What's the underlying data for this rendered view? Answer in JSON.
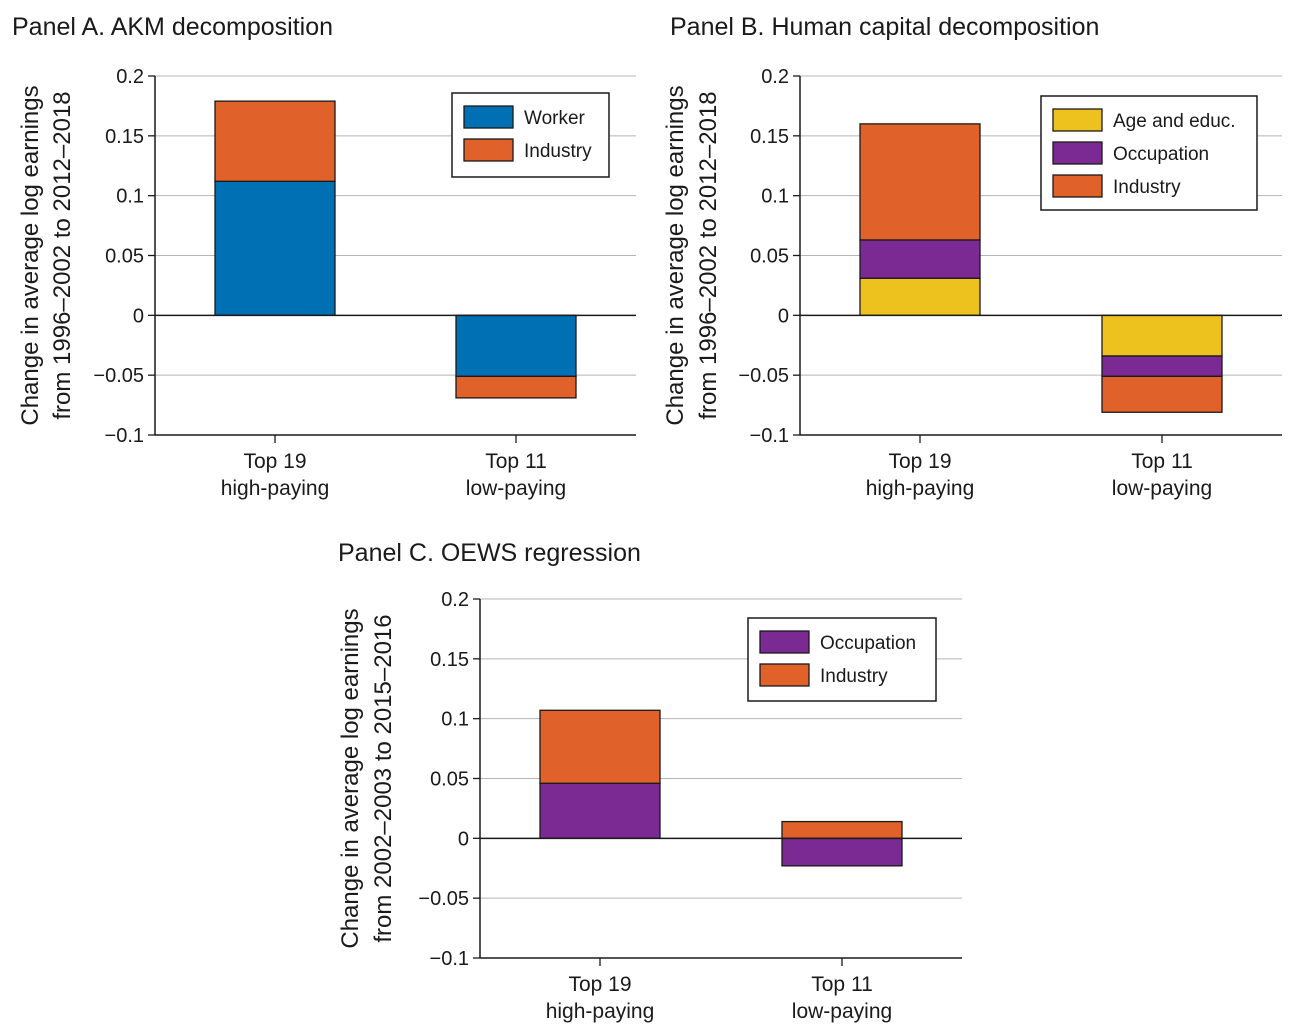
{
  "colors": {
    "worker": "#0070b5",
    "industry": "#e0622a",
    "age_educ": "#eec21e",
    "occupation": "#7a2a92",
    "grid": "#b5b5b5",
    "axis": "#1a1a1a"
  },
  "chart_data": [
    {
      "id": "A",
      "type": "bar",
      "stacked": true,
      "title": "Panel A. AKM decomposition",
      "ylabel": [
        "Change in average log earnings",
        "from 1996–2002 to 2012–2018"
      ],
      "ylim": [
        -0.1,
        0.2
      ],
      "yticks": [
        0.2,
        0.15,
        0.1,
        0.05,
        0,
        -0.05,
        -0.1
      ],
      "ytick_labels": [
        "0.2",
        "0.15",
        "0.1",
        "0.05",
        "0",
        "−0.05",
        "−0.1"
      ],
      "categories": [
        [
          "Top 19",
          "high-paying"
        ],
        [
          "Top 11",
          "low-paying"
        ]
      ],
      "grid": true,
      "legend_position": "top-right",
      "series": [
        {
          "name": "Worker",
          "color": "worker",
          "values": [
            0.112,
            -0.051
          ]
        },
        {
          "name": "Industry",
          "color": "industry",
          "values": [
            0.067,
            -0.018
          ]
        }
      ]
    },
    {
      "id": "B",
      "type": "bar",
      "stacked": true,
      "title": "Panel B. Human capital decomposition",
      "ylabel": [
        "Change in average log earnings",
        "from 1996–2002 to 2012–2018"
      ],
      "ylim": [
        -0.1,
        0.2
      ],
      "yticks": [
        0.2,
        0.15,
        0.1,
        0.05,
        0,
        -0.05,
        -0.1
      ],
      "ytick_labels": [
        "0.2",
        "0.15",
        "0.1",
        "0.05",
        "0",
        "−0.05",
        "−0.1"
      ],
      "categories": [
        [
          "Top 19",
          "high-paying"
        ],
        [
          "Top 11",
          "low-paying"
        ]
      ],
      "grid": true,
      "legend_position": "top-right",
      "series": [
        {
          "name": "Age and educ.",
          "color": "age_educ",
          "values": [
            0.031,
            -0.034
          ]
        },
        {
          "name": "Occupation",
          "color": "occupation",
          "values": [
            0.032,
            -0.017
          ]
        },
        {
          "name": "Industry",
          "color": "industry",
          "values": [
            0.097,
            -0.03
          ]
        }
      ]
    },
    {
      "id": "C",
      "type": "bar",
      "stacked": true,
      "title": "Panel C. OEWS regression",
      "ylabel": [
        "Change in average log earnings",
        "from 2002–2003 to 2015–2016"
      ],
      "ylim": [
        -0.1,
        0.2
      ],
      "yticks": [
        0.2,
        0.15,
        0.1,
        0.05,
        0,
        -0.05,
        -0.1
      ],
      "ytick_labels": [
        "0.2",
        "0.15",
        "0.1",
        "0.05",
        "0",
        "−0.05",
        "−0.1"
      ],
      "categories": [
        [
          "Top 19",
          "high-paying"
        ],
        [
          "Top 11",
          "low-paying"
        ]
      ],
      "grid": true,
      "legend_position": "top-right",
      "series": [
        {
          "name": "Occupation",
          "color": "occupation",
          "values": [
            0.046,
            -0.023
          ]
        },
        {
          "name": "Industry",
          "color": "industry",
          "values": [
            0.061,
            0.014
          ]
        }
      ]
    }
  ]
}
